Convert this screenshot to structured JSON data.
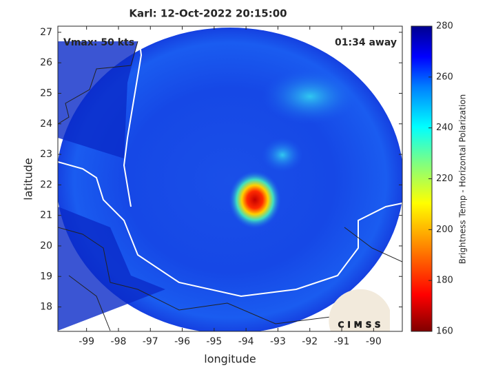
{
  "title": "Karl: 12-Oct-2022 20:15:00",
  "annotations": {
    "left": "Vmax: 50 kts",
    "right": "01:34 away"
  },
  "x_axis": {
    "label": "longitude",
    "lim": [
      -99.9,
      -89.1
    ],
    "ticks": [
      -99,
      -98,
      -97,
      -96,
      -95,
      -94,
      -93,
      -92,
      -91,
      -90
    ]
  },
  "y_axis": {
    "label": "latitude",
    "lim": [
      17.2,
      27.2
    ],
    "ticks": [
      18,
      19,
      20,
      21,
      22,
      23,
      24,
      25,
      26,
      27
    ]
  },
  "colorbar": {
    "label": "Brightness Temp - Horizontal Polarization",
    "lim": [
      160,
      280
    ],
    "ticks": [
      160,
      180,
      200,
      220,
      240,
      260,
      280
    ]
  },
  "logo": "CIMSS"
}
